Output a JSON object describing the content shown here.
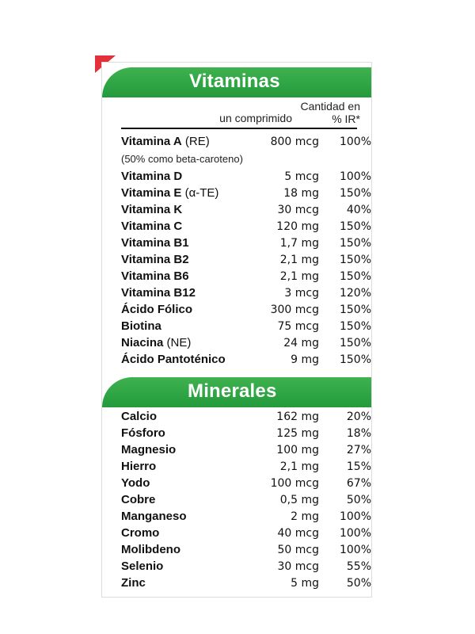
{
  "colors": {
    "green": "#2aa344",
    "red_corner": "#e3313c"
  },
  "vitaminas": {
    "title": "Vitaminas",
    "col_amount": "Cantidad en\nun comprimido",
    "col_pct": "% IR*",
    "note": "(50% como beta-caroteno)",
    "rows": [
      {
        "name": "Vitamina A",
        "extra": " (RE)",
        "amount": "800 mcg",
        "pct": "100%"
      },
      {
        "name": "Vitamina D",
        "extra": "",
        "amount": "5 mcg",
        "pct": "100%"
      },
      {
        "name": "Vitamina E",
        "extra": " (α-TE)",
        "amount": "18 mg",
        "pct": "150%"
      },
      {
        "name": "Vitamina K",
        "extra": "",
        "amount": "30 mcg",
        "pct": "40%"
      },
      {
        "name": "Vitamina C",
        "extra": "",
        "amount": "120 mg",
        "pct": "150%"
      },
      {
        "name": "Vitamina B1",
        "extra": "",
        "amount": "1,7 mg",
        "pct": "150%"
      },
      {
        "name": "Vitamina B2",
        "extra": "",
        "amount": "2,1 mg",
        "pct": "150%"
      },
      {
        "name": "Vitamina B6",
        "extra": "",
        "amount": "2,1 mg",
        "pct": "150%"
      },
      {
        "name": "Vitamina B12",
        "extra": "",
        "amount": "3 mcg",
        "pct": "120%"
      },
      {
        "name": "Ácido Fólico",
        "extra": "",
        "amount": "300 mcg",
        "pct": "150%"
      },
      {
        "name": "Biotina",
        "extra": "",
        "amount": "75 mcg",
        "pct": "150%"
      },
      {
        "name": "Niacina",
        "extra": " (NE)",
        "amount": "24 mg",
        "pct": "150%"
      },
      {
        "name": "Ácido Pantoténico",
        "extra": "",
        "amount": "9 mg",
        "pct": "150%"
      }
    ]
  },
  "minerales": {
    "title": "Minerales",
    "rows": [
      {
        "name": "Calcio",
        "amount": "162 mg",
        "pct": "20%"
      },
      {
        "name": "Fósforo",
        "amount": "125 mg",
        "pct": "18%"
      },
      {
        "name": "Magnesio",
        "amount": "100 mg",
        "pct": "27%"
      },
      {
        "name": "Hierro",
        "amount": "2,1 mg",
        "pct": "15%"
      },
      {
        "name": "Yodo",
        "amount": "100 mcg",
        "pct": "67%"
      },
      {
        "name": "Cobre",
        "amount": "0,5 mg",
        "pct": "50%"
      },
      {
        "name": "Manganeso",
        "amount": "2 mg",
        "pct": "100%"
      },
      {
        "name": "Cromo",
        "amount": "40 mcg",
        "pct": "100%"
      },
      {
        "name": "Molibdeno",
        "amount": "50 mcg",
        "pct": "100%"
      },
      {
        "name": "Selenio",
        "amount": "30 mcg",
        "pct": "55%"
      },
      {
        "name": "Zinc",
        "amount": "5 mg",
        "pct": "50%"
      }
    ]
  }
}
